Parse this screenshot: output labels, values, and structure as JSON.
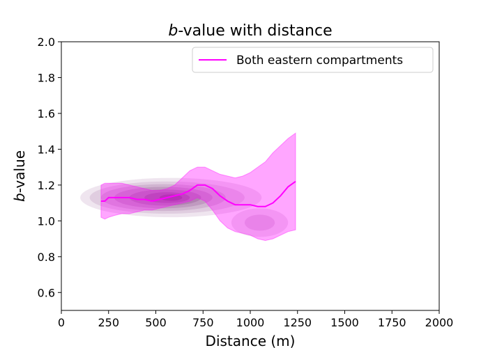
{
  "chart_data": {
    "type": "line",
    "title_prefix": "b",
    "title_rest": "-value with distance",
    "xlabel": "Distance (m)",
    "ylabel_prefix": "b",
    "ylabel_rest": "-value",
    "xlim": [
      0,
      2000
    ],
    "ylim": [
      0.5,
      2.0
    ],
    "xticks": [
      "0",
      "250",
      "500",
      "750",
      "1000",
      "1250",
      "1500",
      "1750",
      "2000"
    ],
    "yticks": [
      "0.6",
      "0.8",
      "1.0",
      "1.2",
      "1.4",
      "1.6",
      "1.8",
      "2.0"
    ],
    "grid": false,
    "legend_position": "top-right",
    "line_color": "#ff00ff",
    "band_color": "#ff00ff",
    "density_color": "#600060",
    "series": [
      {
        "name": "Both eastern compartments",
        "x": [
          210,
          230,
          250,
          280,
          320,
          360,
          400,
          440,
          480,
          520,
          560,
          600,
          640,
          680,
          720,
          760,
          800,
          840,
          880,
          920,
          960,
          1000,
          1040,
          1080,
          1120,
          1160,
          1200,
          1240
        ],
        "y": [
          1.11,
          1.11,
          1.13,
          1.13,
          1.13,
          1.13,
          1.12,
          1.12,
          1.11,
          1.12,
          1.13,
          1.14,
          1.15,
          1.17,
          1.2,
          1.2,
          1.18,
          1.14,
          1.11,
          1.09,
          1.09,
          1.09,
          1.08,
          1.08,
          1.1,
          1.14,
          1.19,
          1.22
        ],
        "lower": [
          1.02,
          1.01,
          1.02,
          1.03,
          1.04,
          1.04,
          1.05,
          1.06,
          1.06,
          1.07,
          1.08,
          1.09,
          1.1,
          1.11,
          1.13,
          1.11,
          1.06,
          1.0,
          0.96,
          0.94,
          0.93,
          0.92,
          0.9,
          0.89,
          0.9,
          0.92,
          0.94,
          0.95
        ],
        "upper": [
          1.2,
          1.21,
          1.21,
          1.21,
          1.21,
          1.2,
          1.19,
          1.18,
          1.17,
          1.17,
          1.18,
          1.2,
          1.24,
          1.28,
          1.3,
          1.3,
          1.28,
          1.26,
          1.25,
          1.24,
          1.25,
          1.27,
          1.3,
          1.33,
          1.38,
          1.42,
          1.46,
          1.49
        ]
      }
    ],
    "density_levels": [
      {
        "cx": 580,
        "cy": 1.13,
        "rx": 480,
        "ry": 0.11,
        "alpha": 0.1
      },
      {
        "cx": 560,
        "cy": 1.13,
        "rx": 410,
        "ry": 0.09,
        "alpha": 0.1
      },
      {
        "cx": 540,
        "cy": 1.13,
        "rx": 330,
        "ry": 0.075,
        "alpha": 0.12
      },
      {
        "cx": 540,
        "cy": 1.13,
        "rx": 260,
        "ry": 0.06,
        "alpha": 0.14
      },
      {
        "cx": 550,
        "cy": 1.13,
        "rx": 190,
        "ry": 0.045,
        "alpha": 0.16
      },
      {
        "cx": 560,
        "cy": 1.13,
        "rx": 120,
        "ry": 0.03,
        "alpha": 0.2
      },
      {
        "cx": 580,
        "cy": 1.13,
        "rx": 60,
        "ry": 0.018,
        "alpha": 0.25
      },
      {
        "cx": 1050,
        "cy": 0.99,
        "rx": 150,
        "ry": 0.08,
        "alpha": 0.1
      },
      {
        "cx": 1050,
        "cy": 0.99,
        "rx": 80,
        "ry": 0.045,
        "alpha": 0.12
      }
    ]
  }
}
